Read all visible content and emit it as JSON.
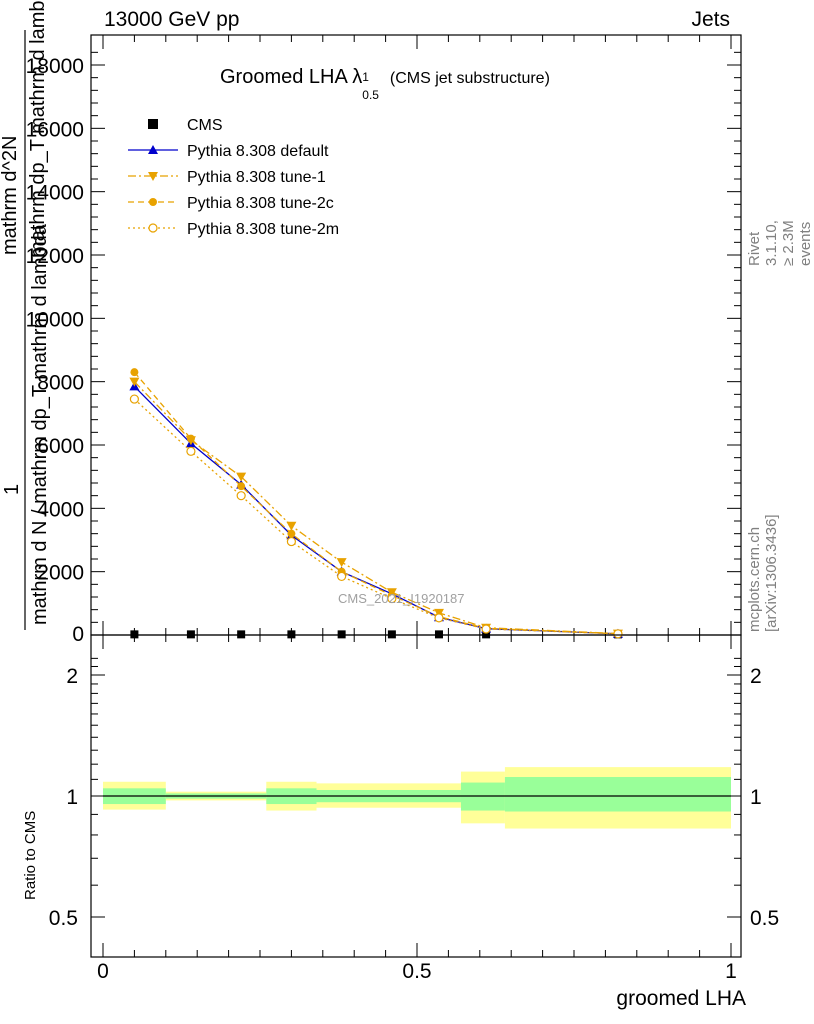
{
  "header": {
    "energy": "13000 GeV pp",
    "process": "Jets"
  },
  "plot_title": "Groomed LHA",
  "plot_title_symbol": "λ",
  "plot_title_sup": "1",
  "plot_title_sub": "0.5",
  "plot_title_note": "(CMS jet substructure)",
  "side_labels": {
    "rivet": "Rivet 3.1.10, ≥ 2.3M events",
    "mcplots": "mcplots.cern.ch [arXiv:1306.3436]"
  },
  "watermark": "CMS_2021_I1920187",
  "colors": {
    "cms": "#000000",
    "default": "#0000cc",
    "tune": "#e8a200",
    "band_inner": "#99ff99",
    "band_outer": "#ffff99"
  },
  "chart_data": [
    {
      "type": "line",
      "ylabel_lines": [
        "1",
        "mathrm d N / mathrm dp_T mathrm d lambda",
        "mathrm d^2N",
        "mathrm dp_T mathrm d lambda"
      ],
      "xlabel": "",
      "xlim": [
        0,
        1
      ],
      "ylim": [
        0,
        18000
      ],
      "yticks": [
        2000,
        4000,
        6000,
        8000,
        10000,
        12000,
        14000,
        16000,
        18000
      ],
      "ytick_labels": [
        "2000",
        "4000",
        "6000",
        "8000",
        "10000",
        "12000",
        "14000",
        "16000",
        "18000"
      ],
      "legend_position": "top-left",
      "x": [
        0.05,
        0.14,
        0.22,
        0.3,
        0.38,
        0.46,
        0.535,
        0.61,
        0.82
      ],
      "series": [
        {
          "name": "CMS",
          "marker": "square",
          "values": [
            20,
            20,
            20,
            20,
            20,
            20,
            20,
            20,
            20
          ]
        },
        {
          "name": "Pythia 8.308 default",
          "marker": "triangle-up",
          "style": "solid",
          "values": [
            7850,
            6050,
            4750,
            3150,
            2000,
            1300,
            560,
            200,
            40
          ]
        },
        {
          "name": "Pythia 8.308 tune-1",
          "marker": "triangle-down",
          "style": "dashdot",
          "values": [
            8000,
            6150,
            5000,
            3450,
            2300,
            1350,
            700,
            230,
            45
          ]
        },
        {
          "name": "Pythia 8.308 tune-2c",
          "marker": "circle",
          "style": "dashed",
          "values": [
            8300,
            6200,
            4700,
            3200,
            2000,
            1250,
            580,
            210,
            40
          ]
        },
        {
          "name": "Pythia 8.308 tune-2m",
          "marker": "circle-open",
          "style": "dotted",
          "values": [
            7450,
            5800,
            4400,
            2950,
            1850,
            1150,
            540,
            190,
            38
          ]
        }
      ]
    },
    {
      "type": "area",
      "ylabel": "Ratio to CMS",
      "xlabel": "groomed LHA",
      "xlim": [
        0,
        1
      ],
      "ylim": [
        0.4,
        2.4
      ],
      "yscale": "log",
      "yticks": [
        0.5,
        1,
        2
      ],
      "ytick_labels": [
        "0.5",
        "1",
        "2"
      ],
      "xticks": [
        0,
        0.5,
        1
      ],
      "xtick_labels": [
        "0",
        "0.5",
        "1"
      ],
      "bins": [
        {
          "lo": 0.0,
          "hi": 0.1,
          "inner": [
            0.955,
            1.045
          ],
          "outer": [
            0.925,
            1.085
          ]
        },
        {
          "lo": 0.1,
          "hi": 0.26,
          "inner": [
            0.985,
            1.015
          ],
          "outer": [
            0.975,
            1.025
          ]
        },
        {
          "lo": 0.26,
          "hi": 0.34,
          "inner": [
            0.955,
            1.045
          ],
          "outer": [
            0.92,
            1.085
          ]
        },
        {
          "lo": 0.34,
          "hi": 0.57,
          "inner": [
            0.965,
            1.035
          ],
          "outer": [
            0.935,
            1.075
          ]
        },
        {
          "lo": 0.57,
          "hi": 0.64,
          "inner": [
            0.92,
            1.08
          ],
          "outer": [
            0.855,
            1.15
          ]
        },
        {
          "lo": 0.64,
          "hi": 1.0,
          "inner": [
            0.915,
            1.115
          ],
          "outer": [
            0.83,
            1.18
          ]
        }
      ]
    }
  ]
}
